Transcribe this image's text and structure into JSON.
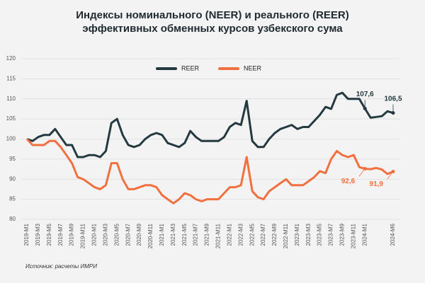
{
  "chart_data": {
    "type": "line",
    "title": "Индексы номинального (NEER) и реального (REER)",
    "subtitle": "эффективных обменных курсов узбекского сума",
    "source": "Источник: расчеты ИМРИ",
    "categories": [
      "2019-M1",
      null,
      "2019-M3",
      null,
      "2019-M5",
      null,
      "2019-M7",
      null,
      "2019-M9",
      null,
      "2019-M11",
      null,
      "2020-M1",
      null,
      "2020-M3",
      null,
      "2020-M5",
      null,
      "2020-M7",
      null,
      "2020-M9",
      null,
      "2020-M11",
      null,
      "2021-M1",
      null,
      "2021-M3",
      null,
      "2021-M5",
      null,
      "2021-M7",
      null,
      "2021-M9",
      null,
      "2021-M11",
      null,
      "2022-M1",
      null,
      "2022-M3",
      null,
      "2022-M5",
      null,
      "2022-M7",
      null,
      "2022-M9",
      null,
      "2022-M11",
      null,
      "2023-M1",
      null,
      "2023-M3",
      null,
      "2023-M5",
      null,
      "2023-M7",
      null,
      "2023-M9",
      null,
      "2023-M11",
      null,
      "2024-M1",
      null,
      null,
      null,
      null,
      "2024-M6"
    ],
    "series": [
      {
        "name": "REER",
        "color": "#243a40",
        "values": [
          100,
          99.5,
          100.5,
          101,
          101,
          102.5,
          100.5,
          98.5,
          98.5,
          95.5,
          95.5,
          96,
          96,
          95.5,
          97,
          104,
          105,
          101,
          98.5,
          98,
          98.5,
          100,
          101,
          101.5,
          101,
          99,
          98.5,
          98,
          99,
          102,
          100.5,
          99.5,
          99.5,
          99.5,
          99.5,
          100.5,
          103,
          104,
          103.5,
          109.5,
          99.5,
          98,
          98,
          100,
          101.5,
          102.5,
          103,
          103.5,
          102.5,
          103,
          103,
          104.5,
          106,
          108,
          107.5,
          111,
          111.5,
          110,
          110,
          110,
          107.6,
          105.3,
          105.5,
          105.7,
          106.9,
          106.5
        ],
        "value_labels": [
          null,
          null,
          null,
          null,
          null,
          null,
          null,
          null,
          null,
          null,
          null,
          null,
          null,
          null,
          null,
          null,
          null,
          null,
          null,
          null,
          null,
          null,
          null,
          null,
          null,
          null,
          null,
          null,
          null,
          null,
          null,
          null,
          null,
          null,
          null,
          null,
          null,
          null,
          null,
          null,
          null,
          null,
          null,
          null,
          null,
          null,
          null,
          null,
          null,
          null,
          null,
          null,
          null,
          null,
          null,
          null,
          null,
          null,
          null,
          null,
          "107,6",
          null,
          null,
          null,
          null,
          "106,5"
        ]
      },
      {
        "name": "NEER",
        "color": "#f07040",
        "values": [
          100,
          98.5,
          98.5,
          98.5,
          99.5,
          99.5,
          98,
          96,
          94,
          90.5,
          90,
          89,
          88,
          87.5,
          88.5,
          94,
          94,
          90,
          87.5,
          87.5,
          88,
          88.5,
          88.5,
          88,
          86,
          85,
          84,
          85,
          86.5,
          86,
          85,
          84.5,
          85,
          85,
          85,
          86.5,
          88,
          88,
          88.5,
          95.5,
          87,
          85.5,
          85,
          87,
          88,
          89,
          90,
          88.5,
          88.5,
          88.5,
          89.5,
          90.5,
          92,
          91.5,
          95,
          97,
          96,
          95.5,
          96,
          93,
          92.6,
          92.5,
          92.8,
          92.4,
          91.3,
          91.9
        ],
        "value_labels": [
          null,
          null,
          null,
          null,
          null,
          null,
          null,
          null,
          null,
          null,
          null,
          null,
          null,
          null,
          null,
          null,
          null,
          null,
          null,
          null,
          null,
          null,
          null,
          null,
          null,
          null,
          null,
          null,
          null,
          null,
          null,
          null,
          null,
          null,
          null,
          null,
          null,
          null,
          null,
          null,
          null,
          null,
          null,
          null,
          null,
          null,
          null,
          null,
          null,
          null,
          null,
          null,
          null,
          null,
          null,
          null,
          null,
          null,
          null,
          null,
          "92,6",
          null,
          null,
          null,
          null,
          "91,9"
        ]
      }
    ],
    "ylim": [
      80,
      120
    ],
    "yticks": [
      80,
      85,
      90,
      95,
      100,
      105,
      110,
      115,
      120
    ],
    "grid": true,
    "legend": "top"
  }
}
